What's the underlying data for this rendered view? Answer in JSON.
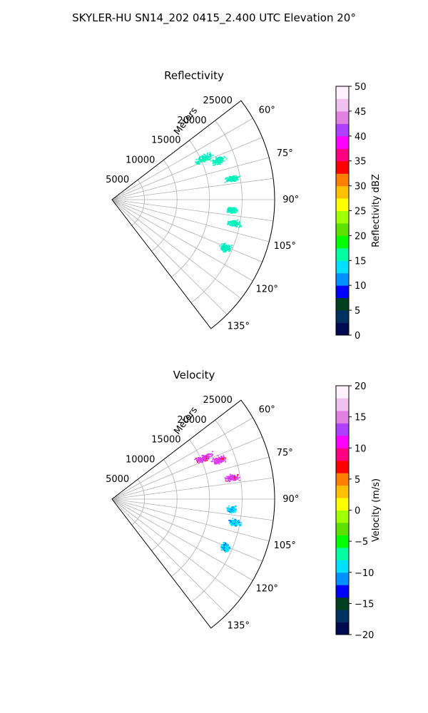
{
  "title": "SKYLER-HU  SN14_202  0415_2.400 UTC Elevation 20°",
  "colors": {
    "grid": "#b0b0b0",
    "refl_echo_a": "#00ffb0",
    "refl_echo_b": "#00e0d0",
    "vel_pos_a": "#cc44ff",
    "vel_pos_b": "#ff33ff",
    "vel_neg_a": "#00e5ff",
    "vel_neg_b": "#0066ff",
    "vel_red": "#ff0000"
  },
  "chart_data": [
    {
      "type": "polar-sector",
      "title": "Reflectivity",
      "range_label": "Meters",
      "range_ticks": [
        5000,
        10000,
        15000,
        20000,
        25000
      ],
      "r_max": 25000,
      "azimuth_range_deg": [
        52.5,
        142.5
      ],
      "azimuth_ticks": [
        60,
        75,
        90,
        105,
        120,
        135
      ],
      "azimuth_tick_labels": [
        "60°",
        "75°",
        "90°",
        "105°",
        "120°",
        "135°"
      ],
      "grid": true,
      "colorbar": {
        "label": "Reflectivity dBZ",
        "min": 0,
        "max": 50,
        "ticks": [
          0,
          5,
          10,
          15,
          20,
          25,
          30,
          35,
          40,
          45,
          50
        ],
        "stops": [
          "#000a50",
          "#003060",
          "#004020",
          "#0000ff",
          "#0090ff",
          "#00e0ff",
          "#00ffa0",
          "#00ff00",
          "#60e000",
          "#a0ff00",
          "#ffff00",
          "#ffc000",
          "#ff8000",
          "#ff0000",
          "#ff0080",
          "#ff00ff",
          "#b040ff",
          "#e080e0",
          "#f0c0f0",
          "#fff0ff"
        ]
      },
      "echo_clusters": [
        {
          "az_deg": 66,
          "range_m": 15500,
          "az_spread": 2.5,
          "range_spread": 1800,
          "level": "a"
        },
        {
          "az_deg": 70,
          "range_m": 17500,
          "az_spread": 2.5,
          "range_spread": 1400,
          "level": "a"
        },
        {
          "az_deg": 80,
          "range_m": 18800,
          "az_spread": 2.0,
          "range_spread": 1500,
          "level": "a"
        },
        {
          "az_deg": 95,
          "range_m": 18500,
          "az_spread": 2.0,
          "range_spread": 1000,
          "level": "a"
        },
        {
          "az_deg": 101,
          "range_m": 19200,
          "az_spread": 2.0,
          "range_spread": 1200,
          "level": "a"
        },
        {
          "az_deg": 113,
          "range_m": 19000,
          "az_spread": 2.5,
          "range_spread": 1100,
          "level": "b"
        }
      ]
    },
    {
      "type": "polar-sector",
      "title": "Velocity",
      "range_label": "Meters",
      "range_ticks": [
        5000,
        10000,
        15000,
        20000,
        25000
      ],
      "r_max": 25000,
      "azimuth_range_deg": [
        52.5,
        142.5
      ],
      "azimuth_ticks": [
        60,
        75,
        90,
        105,
        120,
        135
      ],
      "azimuth_tick_labels": [
        "60°",
        "75°",
        "90°",
        "105°",
        "120°",
        "135°"
      ],
      "grid": true,
      "colorbar": {
        "label": "Velocity (m/s)",
        "min": -20,
        "max": 20,
        "ticks": [
          -20,
          -15,
          -10,
          -5,
          0,
          5,
          10,
          15,
          20
        ],
        "tick_labels": [
          "−20",
          "−15",
          "−10",
          "−5",
          "0",
          "5",
          "10",
          "15",
          "20"
        ],
        "stops": [
          "#000a50",
          "#003060",
          "#004020",
          "#0000ff",
          "#0090ff",
          "#00e0ff",
          "#00ffa0",
          "#00ff00",
          "#60e000",
          "#a0ff00",
          "#ffff00",
          "#ffc000",
          "#ff8000",
          "#ff0000",
          "#ff0080",
          "#ff00ff",
          "#b040ff",
          "#e080e0",
          "#f0c0f0",
          "#fff0ff"
        ]
      },
      "echo_clusters": [
        {
          "az_deg": 66,
          "range_m": 15500,
          "az_spread": 2.5,
          "range_spread": 1800,
          "level": "pos"
        },
        {
          "az_deg": 70,
          "range_m": 17500,
          "az_spread": 2.5,
          "range_spread": 1400,
          "level": "pos"
        },
        {
          "az_deg": 80,
          "range_m": 18800,
          "az_spread": 2.0,
          "range_spread": 1500,
          "level": "pos"
        },
        {
          "az_deg": 95,
          "range_m": 18500,
          "az_spread": 2.0,
          "range_spread": 1000,
          "level": "neg"
        },
        {
          "az_deg": 101,
          "range_m": 19200,
          "az_spread": 2.0,
          "range_spread": 1200,
          "level": "neg"
        },
        {
          "az_deg": 113,
          "range_m": 19000,
          "az_spread": 2.5,
          "range_spread": 1100,
          "level": "neg"
        }
      ]
    }
  ]
}
